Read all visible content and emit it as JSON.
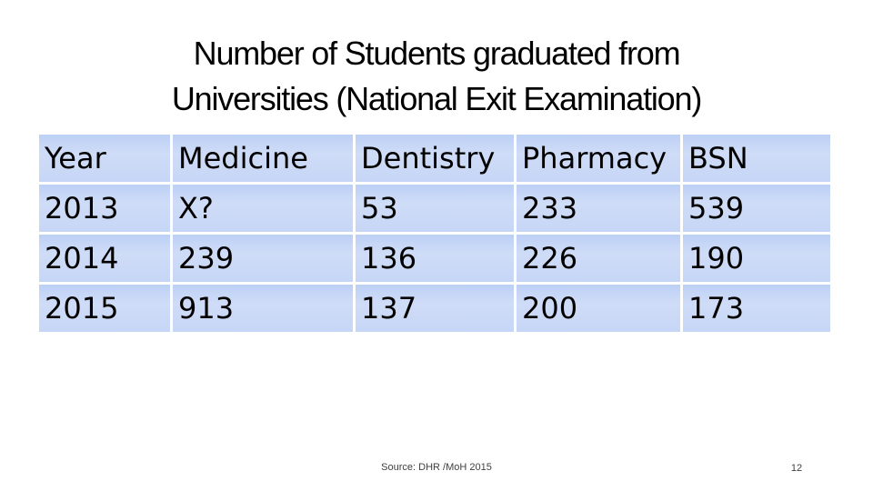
{
  "slide": {
    "title_line1": "Number of Students graduated from",
    "title_line2": "Universities (National Exit Examination)",
    "source": "Source: DHR /MoH 2015",
    "page_number": "12"
  },
  "table": {
    "headers": [
      "Year",
      "Medicine",
      "Dentistry",
      "Pharmacy",
      "BSN"
    ],
    "rows": [
      [
        "2013",
        "X?",
        "53",
        "233",
        "539"
      ],
      [
        "2014",
        "239",
        "136",
        "226",
        "190"
      ],
      [
        "2015",
        "913",
        "137",
        "200",
        "173"
      ]
    ]
  },
  "colors": {
    "cell_fill": "#c6d6f6",
    "text": "#000000"
  }
}
